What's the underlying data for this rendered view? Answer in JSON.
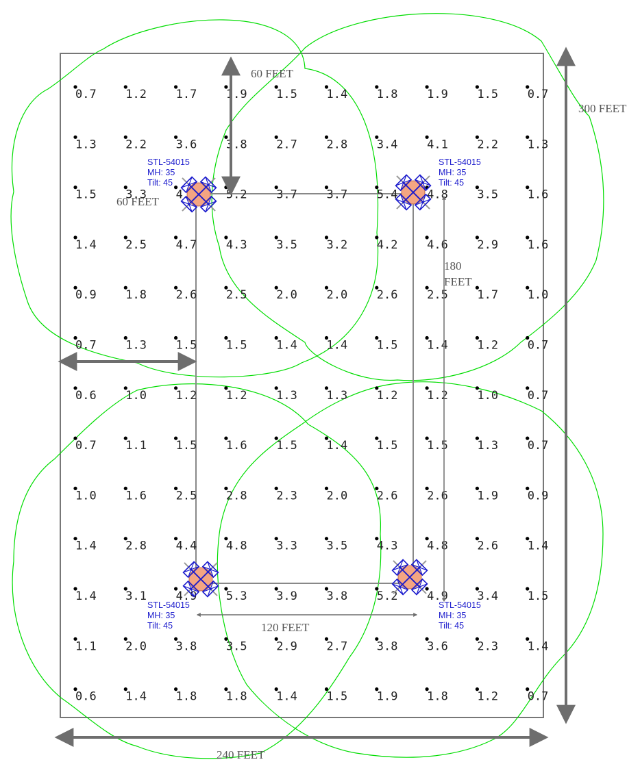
{
  "colors": {
    "boundary": "#777777",
    "dimension": "#6e6e6e",
    "contour": "#00dd00",
    "fixture_fill": "#f4a582",
    "fixture_stroke": "#1a1acc",
    "label": "#1a1acc",
    "point": "#000000"
  },
  "dimensions": {
    "width": "240 FEET",
    "height": "300 FEET",
    "pole_spacing_x": "120 FEET",
    "pole_spacing_y_line1": "180",
    "pole_spacing_y_line2": "FEET",
    "offset_top": "60 FEET",
    "offset_left": "60 FEET"
  },
  "fixtures": [
    {
      "model": "STL-54015",
      "mh": "MH: 35",
      "tilt": "Tilt: 45",
      "label_side": "top"
    },
    {
      "model": "STL-54015",
      "mh": "MH: 35",
      "tilt": "Tilt: 45",
      "label_side": "top"
    },
    {
      "model": "STL-54015",
      "mh": "MH: 35",
      "tilt": "Tilt: 45",
      "label_side": "bottom"
    },
    {
      "model": "STL-54015",
      "mh": "MH: 35",
      "tilt": "Tilt: 45",
      "label_side": "bottom"
    }
  ],
  "grid_values": [
    [
      "0.7",
      "1.2",
      "1.7",
      "1.9",
      "1.5",
      "1.4",
      "1.8",
      "1.9",
      "1.5",
      "0.7"
    ],
    [
      "1.3",
      "2.2",
      "3.6",
      "3.8",
      "2.7",
      "2.8",
      "3.4",
      "4.1",
      "2.2",
      "1.3"
    ],
    [
      "1.5",
      "3.3",
      "4.9",
      "5.2",
      "3.7",
      "3.7",
      "5.4",
      "4.8",
      "3.5",
      "1.6"
    ],
    [
      "1.4",
      "2.5",
      "4.7",
      "4.3",
      "3.5",
      "3.2",
      "4.2",
      "4.6",
      "2.9",
      "1.6"
    ],
    [
      "0.9",
      "1.8",
      "2.6",
      "2.5",
      "2.0",
      "2.0",
      "2.6",
      "2.5",
      "1.7",
      "1.0"
    ],
    [
      "0.7",
      "1.3",
      "1.5",
      "1.5",
      "1.4",
      "1.4",
      "1.5",
      "1.4",
      "1.2",
      "0.7"
    ],
    [
      "0.6",
      "1.0",
      "1.2",
      "1.2",
      "1.3",
      "1.3",
      "1.2",
      "1.2",
      "1.0",
      "0.7"
    ],
    [
      "0.7",
      "1.1",
      "1.5",
      "1.6",
      "1.5",
      "1.4",
      "1.5",
      "1.5",
      "1.3",
      "0.7"
    ],
    [
      "1.0",
      "1.6",
      "2.5",
      "2.8",
      "2.3",
      "2.0",
      "2.6",
      "2.6",
      "1.9",
      "0.9"
    ],
    [
      "1.4",
      "2.8",
      "4.4",
      "4.8",
      "3.3",
      "3.5",
      "4.3",
      "4.8",
      "2.6",
      "1.4"
    ],
    [
      "1.4",
      "3.1",
      "4.9",
      "5.3",
      "3.9",
      "3.8",
      "5.2",
      "4.9",
      "3.4",
      "1.5"
    ],
    [
      "1.1",
      "2.0",
      "3.8",
      "3.5",
      "2.9",
      "2.7",
      "3.8",
      "3.6",
      "2.3",
      "1.4"
    ],
    [
      "0.6",
      "1.4",
      "1.8",
      "1.8",
      "1.4",
      "1.5",
      "1.9",
      "1.8",
      "1.2",
      "0.7"
    ]
  ]
}
